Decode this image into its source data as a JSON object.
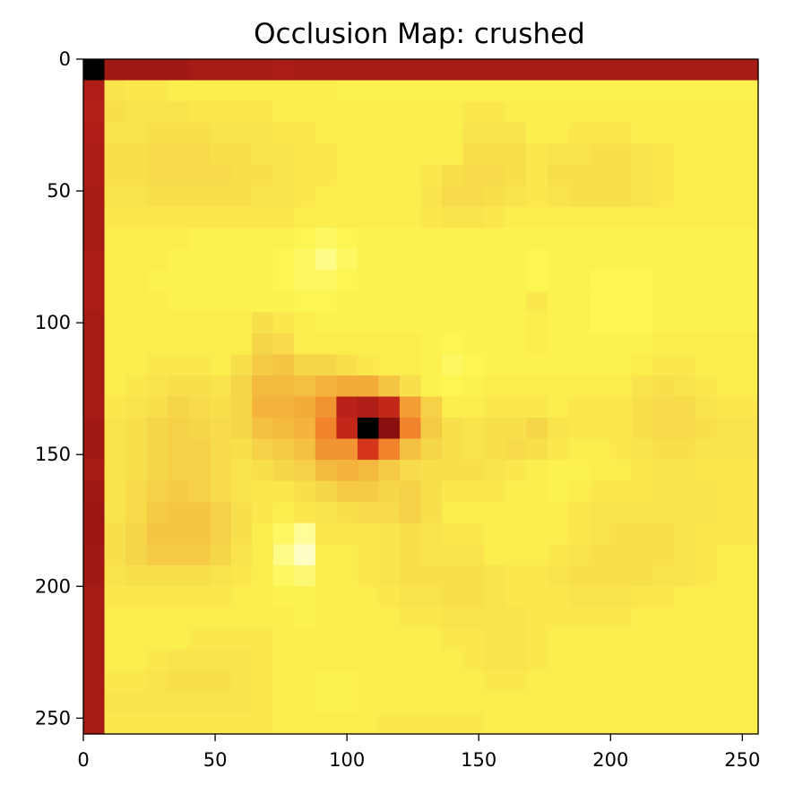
{
  "chart_data": {
    "type": "heatmap",
    "title": "Occlusion Map: crushed",
    "xlabel": "",
    "ylabel": "",
    "colormap": "hot",
    "xlim": [
      0,
      256
    ],
    "ylim": [
      256,
      0
    ],
    "x_ticks": [
      0,
      50,
      100,
      150,
      200,
      250
    ],
    "y_ticks": [
      0,
      50,
      100,
      150,
      200,
      250
    ],
    "grid": false,
    "cell_size": 8,
    "color_stops": [
      "#000000",
      "#8a1010",
      "#b82218",
      "#e8421c",
      "#f27a2a",
      "#f3a637",
      "#f4c644",
      "#f8e04c",
      "#fdf550",
      "#ffffaa",
      "#ffffee"
    ],
    "rows": [
      [
        0.0,
        0.15,
        0.15,
        0.15,
        0.15,
        0.16,
        0.16,
        0.16,
        0.16,
        0.17,
        0.16,
        0.16,
        0.16,
        0.16,
        0.16,
        0.16,
        0.16,
        0.16,
        0.16,
        0.16,
        0.16,
        0.16,
        0.16,
        0.16,
        0.16,
        0.16,
        0.16,
        0.16,
        0.16,
        0.16,
        0.16,
        0.16
      ],
      [
        0.18,
        0.72,
        0.74,
        0.74,
        0.76,
        0.76,
        0.76,
        0.76,
        0.76,
        0.76,
        0.76,
        0.76,
        0.78,
        0.78,
        0.78,
        0.78,
        0.78,
        0.78,
        0.78,
        0.78,
        0.78,
        0.78,
        0.78,
        0.78,
        0.78,
        0.78,
        0.78,
        0.78,
        0.78,
        0.78,
        0.78,
        0.78
      ],
      [
        0.19,
        0.7,
        0.72,
        0.72,
        0.72,
        0.74,
        0.74,
        0.74,
        0.74,
        0.76,
        0.76,
        0.76,
        0.76,
        0.76,
        0.76,
        0.76,
        0.76,
        0.76,
        0.74,
        0.74,
        0.76,
        0.76,
        0.76,
        0.76,
        0.76,
        0.76,
        0.76,
        0.76,
        0.76,
        0.76,
        0.76,
        0.76
      ],
      [
        0.18,
        0.72,
        0.72,
        0.7,
        0.7,
        0.7,
        0.72,
        0.72,
        0.72,
        0.74,
        0.74,
        0.76,
        0.76,
        0.76,
        0.76,
        0.76,
        0.76,
        0.76,
        0.72,
        0.72,
        0.72,
        0.76,
        0.76,
        0.74,
        0.74,
        0.74,
        0.76,
        0.76,
        0.76,
        0.76,
        0.76,
        0.76
      ],
      [
        0.17,
        0.7,
        0.7,
        0.68,
        0.68,
        0.68,
        0.7,
        0.7,
        0.72,
        0.72,
        0.74,
        0.74,
        0.76,
        0.76,
        0.76,
        0.76,
        0.76,
        0.76,
        0.7,
        0.7,
        0.7,
        0.74,
        0.72,
        0.72,
        0.7,
        0.7,
        0.72,
        0.74,
        0.76,
        0.76,
        0.76,
        0.76
      ],
      [
        0.17,
        0.7,
        0.7,
        0.68,
        0.68,
        0.68,
        0.68,
        0.7,
        0.7,
        0.72,
        0.74,
        0.74,
        0.76,
        0.76,
        0.76,
        0.76,
        0.74,
        0.7,
        0.68,
        0.68,
        0.7,
        0.74,
        0.7,
        0.7,
        0.7,
        0.7,
        0.72,
        0.74,
        0.76,
        0.76,
        0.76,
        0.76
      ],
      [
        0.16,
        0.72,
        0.72,
        0.7,
        0.7,
        0.7,
        0.7,
        0.7,
        0.72,
        0.72,
        0.74,
        0.76,
        0.76,
        0.76,
        0.76,
        0.76,
        0.72,
        0.68,
        0.68,
        0.7,
        0.72,
        0.74,
        0.72,
        0.7,
        0.7,
        0.7,
        0.72,
        0.74,
        0.76,
        0.76,
        0.76,
        0.76
      ],
      [
        0.16,
        0.74,
        0.74,
        0.74,
        0.74,
        0.74,
        0.74,
        0.74,
        0.74,
        0.74,
        0.76,
        0.76,
        0.76,
        0.76,
        0.76,
        0.76,
        0.74,
        0.72,
        0.72,
        0.74,
        0.76,
        0.76,
        0.76,
        0.76,
        0.76,
        0.76,
        0.76,
        0.76,
        0.76,
        0.76,
        0.76,
        0.76
      ],
      [
        0.16,
        0.76,
        0.76,
        0.76,
        0.76,
        0.78,
        0.78,
        0.78,
        0.78,
        0.78,
        0.8,
        0.82,
        0.8,
        0.78,
        0.78,
        0.78,
        0.78,
        0.78,
        0.78,
        0.78,
        0.78,
        0.78,
        0.78,
        0.78,
        0.78,
        0.78,
        0.78,
        0.78,
        0.78,
        0.78,
        0.78,
        0.78
      ],
      [
        0.17,
        0.76,
        0.76,
        0.76,
        0.78,
        0.78,
        0.78,
        0.78,
        0.78,
        0.8,
        0.82,
        0.86,
        0.82,
        0.78,
        0.78,
        0.78,
        0.78,
        0.78,
        0.78,
        0.78,
        0.78,
        0.8,
        0.78,
        0.78,
        0.78,
        0.78,
        0.78,
        0.78,
        0.78,
        0.78,
        0.78,
        0.78
      ],
      [
        0.17,
        0.76,
        0.76,
        0.78,
        0.78,
        0.78,
        0.78,
        0.78,
        0.78,
        0.8,
        0.82,
        0.82,
        0.8,
        0.78,
        0.78,
        0.78,
        0.78,
        0.78,
        0.78,
        0.78,
        0.78,
        0.8,
        0.78,
        0.78,
        0.8,
        0.8,
        0.8,
        0.78,
        0.78,
        0.78,
        0.78,
        0.78
      ],
      [
        0.17,
        0.76,
        0.76,
        0.76,
        0.78,
        0.78,
        0.78,
        0.78,
        0.78,
        0.78,
        0.8,
        0.8,
        0.78,
        0.78,
        0.78,
        0.78,
        0.78,
        0.78,
        0.78,
        0.78,
        0.78,
        0.74,
        0.78,
        0.78,
        0.8,
        0.8,
        0.8,
        0.78,
        0.78,
        0.78,
        0.78,
        0.78
      ],
      [
        0.16,
        0.76,
        0.76,
        0.76,
        0.76,
        0.76,
        0.76,
        0.76,
        0.7,
        0.74,
        0.76,
        0.78,
        0.78,
        0.78,
        0.78,
        0.78,
        0.78,
        0.78,
        0.78,
        0.78,
        0.78,
        0.76,
        0.78,
        0.78,
        0.8,
        0.8,
        0.8,
        0.78,
        0.78,
        0.78,
        0.78,
        0.78
      ],
      [
        0.16,
        0.76,
        0.76,
        0.76,
        0.76,
        0.76,
        0.76,
        0.76,
        0.66,
        0.68,
        0.76,
        0.76,
        0.76,
        0.76,
        0.76,
        0.76,
        0.78,
        0.8,
        0.78,
        0.78,
        0.78,
        0.76,
        0.78,
        0.78,
        0.78,
        0.78,
        0.78,
        0.76,
        0.76,
        0.76,
        0.76,
        0.76
      ],
      [
        0.16,
        0.76,
        0.76,
        0.74,
        0.74,
        0.74,
        0.76,
        0.7,
        0.62,
        0.6,
        0.66,
        0.66,
        0.7,
        0.74,
        0.76,
        0.76,
        0.78,
        0.82,
        0.8,
        0.78,
        0.78,
        0.78,
        0.78,
        0.78,
        0.78,
        0.78,
        0.76,
        0.74,
        0.74,
        0.76,
        0.76,
        0.76
      ],
      [
        0.16,
        0.76,
        0.74,
        0.72,
        0.7,
        0.7,
        0.72,
        0.66,
        0.56,
        0.56,
        0.58,
        0.54,
        0.52,
        0.52,
        0.6,
        0.7,
        0.78,
        0.8,
        0.78,
        0.76,
        0.76,
        0.76,
        0.76,
        0.76,
        0.76,
        0.76,
        0.72,
        0.7,
        0.72,
        0.74,
        0.76,
        0.76
      ],
      [
        0.16,
        0.74,
        0.72,
        0.7,
        0.66,
        0.68,
        0.7,
        0.66,
        0.54,
        0.54,
        0.52,
        0.46,
        0.2,
        0.18,
        0.22,
        0.48,
        0.64,
        0.76,
        0.76,
        0.74,
        0.74,
        0.74,
        0.76,
        0.74,
        0.74,
        0.74,
        0.7,
        0.68,
        0.68,
        0.72,
        0.74,
        0.74
      ],
      [
        0.15,
        0.72,
        0.7,
        0.66,
        0.64,
        0.66,
        0.68,
        0.66,
        0.58,
        0.56,
        0.54,
        0.42,
        0.22,
        0.0,
        0.1,
        0.42,
        0.62,
        0.7,
        0.72,
        0.7,
        0.7,
        0.66,
        0.72,
        0.74,
        0.74,
        0.74,
        0.7,
        0.68,
        0.68,
        0.7,
        0.72,
        0.72
      ],
      [
        0.15,
        0.72,
        0.7,
        0.66,
        0.64,
        0.64,
        0.68,
        0.7,
        0.64,
        0.62,
        0.58,
        0.46,
        0.46,
        0.26,
        0.42,
        0.58,
        0.66,
        0.7,
        0.72,
        0.7,
        0.68,
        0.7,
        0.74,
        0.76,
        0.76,
        0.74,
        0.72,
        0.7,
        0.7,
        0.72,
        0.72,
        0.72
      ],
      [
        0.16,
        0.72,
        0.7,
        0.66,
        0.64,
        0.64,
        0.68,
        0.72,
        0.7,
        0.66,
        0.64,
        0.56,
        0.54,
        0.56,
        0.62,
        0.68,
        0.7,
        0.7,
        0.7,
        0.72,
        0.74,
        0.76,
        0.78,
        0.78,
        0.76,
        0.76,
        0.74,
        0.72,
        0.72,
        0.74,
        0.74,
        0.74
      ],
      [
        0.15,
        0.72,
        0.68,
        0.64,
        0.62,
        0.64,
        0.68,
        0.72,
        0.74,
        0.74,
        0.7,
        0.66,
        0.62,
        0.62,
        0.66,
        0.64,
        0.7,
        0.74,
        0.74,
        0.74,
        0.76,
        0.76,
        0.78,
        0.76,
        0.74,
        0.74,
        0.74,
        0.72,
        0.72,
        0.72,
        0.74,
        0.74
      ],
      [
        0.14,
        0.72,
        0.68,
        0.62,
        0.6,
        0.6,
        0.64,
        0.7,
        0.74,
        0.76,
        0.74,
        0.72,
        0.7,
        0.68,
        0.68,
        0.64,
        0.7,
        0.76,
        0.76,
        0.76,
        0.76,
        0.76,
        0.76,
        0.74,
        0.72,
        0.72,
        0.72,
        0.72,
        0.72,
        0.72,
        0.74,
        0.74
      ],
      [
        0.14,
        0.7,
        0.66,
        0.6,
        0.6,
        0.6,
        0.64,
        0.7,
        0.76,
        0.82,
        0.88,
        0.74,
        0.74,
        0.74,
        0.72,
        0.7,
        0.72,
        0.74,
        0.74,
        0.76,
        0.76,
        0.76,
        0.76,
        0.74,
        0.72,
        0.7,
        0.7,
        0.7,
        0.72,
        0.74,
        0.74,
        0.74
      ],
      [
        0.15,
        0.7,
        0.66,
        0.62,
        0.62,
        0.62,
        0.66,
        0.72,
        0.76,
        0.86,
        0.94,
        0.76,
        0.76,
        0.74,
        0.72,
        0.7,
        0.72,
        0.72,
        0.72,
        0.76,
        0.76,
        0.76,
        0.74,
        0.72,
        0.7,
        0.7,
        0.7,
        0.7,
        0.72,
        0.74,
        0.76,
        0.76
      ],
      [
        0.15,
        0.72,
        0.7,
        0.7,
        0.7,
        0.7,
        0.72,
        0.74,
        0.76,
        0.82,
        0.84,
        0.76,
        0.76,
        0.74,
        0.72,
        0.7,
        0.7,
        0.7,
        0.7,
        0.72,
        0.74,
        0.74,
        0.72,
        0.7,
        0.7,
        0.7,
        0.7,
        0.72,
        0.72,
        0.74,
        0.76,
        0.76
      ],
      [
        0.16,
        0.74,
        0.74,
        0.74,
        0.74,
        0.74,
        0.74,
        0.76,
        0.76,
        0.78,
        0.78,
        0.76,
        0.76,
        0.76,
        0.74,
        0.72,
        0.72,
        0.7,
        0.7,
        0.72,
        0.74,
        0.74,
        0.74,
        0.72,
        0.72,
        0.72,
        0.74,
        0.74,
        0.76,
        0.76,
        0.76,
        0.76
      ],
      [
        0.16,
        0.76,
        0.76,
        0.76,
        0.76,
        0.76,
        0.76,
        0.76,
        0.76,
        0.76,
        0.78,
        0.76,
        0.76,
        0.76,
        0.76,
        0.74,
        0.74,
        0.72,
        0.72,
        0.72,
        0.72,
        0.74,
        0.74,
        0.74,
        0.74,
        0.74,
        0.76,
        0.76,
        0.76,
        0.76,
        0.76,
        0.76
      ],
      [
        0.16,
        0.76,
        0.76,
        0.76,
        0.76,
        0.74,
        0.74,
        0.74,
        0.74,
        0.76,
        0.76,
        0.76,
        0.76,
        0.76,
        0.76,
        0.76,
        0.76,
        0.74,
        0.74,
        0.72,
        0.72,
        0.74,
        0.76,
        0.76,
        0.76,
        0.76,
        0.76,
        0.76,
        0.76,
        0.76,
        0.76,
        0.76
      ],
      [
        0.16,
        0.76,
        0.76,
        0.74,
        0.72,
        0.72,
        0.72,
        0.72,
        0.74,
        0.76,
        0.76,
        0.76,
        0.76,
        0.76,
        0.76,
        0.76,
        0.76,
        0.76,
        0.74,
        0.72,
        0.72,
        0.74,
        0.76,
        0.76,
        0.76,
        0.76,
        0.76,
        0.76,
        0.76,
        0.76,
        0.76,
        0.76
      ],
      [
        0.16,
        0.74,
        0.74,
        0.72,
        0.7,
        0.7,
        0.7,
        0.72,
        0.74,
        0.76,
        0.76,
        0.78,
        0.78,
        0.76,
        0.76,
        0.76,
        0.76,
        0.76,
        0.76,
        0.74,
        0.74,
        0.76,
        0.76,
        0.76,
        0.76,
        0.76,
        0.76,
        0.76,
        0.76,
        0.76,
        0.76,
        0.76
      ],
      [
        0.16,
        0.72,
        0.72,
        0.72,
        0.72,
        0.72,
        0.72,
        0.72,
        0.74,
        0.76,
        0.76,
        0.78,
        0.78,
        0.76,
        0.76,
        0.76,
        0.76,
        0.76,
        0.76,
        0.76,
        0.76,
        0.76,
        0.76,
        0.76,
        0.76,
        0.76,
        0.76,
        0.76,
        0.76,
        0.76,
        0.76,
        0.76
      ],
      [
        0.16,
        0.74,
        0.74,
        0.74,
        0.74,
        0.74,
        0.74,
        0.74,
        0.74,
        0.76,
        0.76,
        0.76,
        0.76,
        0.76,
        0.74,
        0.74,
        0.74,
        0.74,
        0.74,
        0.76,
        0.76,
        0.76,
        0.76,
        0.76,
        0.76,
        0.76,
        0.76,
        0.76,
        0.76,
        0.76,
        0.76,
        0.76
      ]
    ]
  }
}
